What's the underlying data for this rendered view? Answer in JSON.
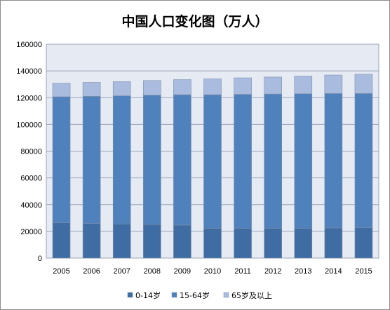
{
  "chart_data": {
    "type": "bar",
    "stacked": true,
    "title": "中国人口变化图（万人）",
    "categories": [
      "2005",
      "2006",
      "2007",
      "2008",
      "2009",
      "2010",
      "2011",
      "2012",
      "2013",
      "2014",
      "2015"
    ],
    "series": [
      {
        "name": "0-14岁",
        "color": "#3F6DA3",
        "values": [
          26500,
          25900,
          25600,
          25200,
          24700,
          22300,
          22200,
          22300,
          22300,
          22600,
          22700
        ]
      },
      {
        "name": "15-64岁",
        "color": "#4F81BD",
        "values": [
          94200,
          95100,
          95800,
          96700,
          97500,
          99900,
          100300,
          100400,
          100600,
          100500,
          100400
        ]
      },
      {
        "name": "65岁及以上",
        "color": "#A9BCE0",
        "values": [
          10100,
          10400,
          10600,
          10900,
          11300,
          11900,
          12300,
          12700,
          13200,
          13800,
          14400
        ]
      }
    ],
    "ylim": [
      0,
      160000
    ],
    "yticks": [
      "0",
      "20000",
      "40000",
      "60000",
      "80000",
      "100000",
      "120000",
      "140000",
      "160000"
    ],
    "grid": true,
    "legend": "bottom"
  }
}
